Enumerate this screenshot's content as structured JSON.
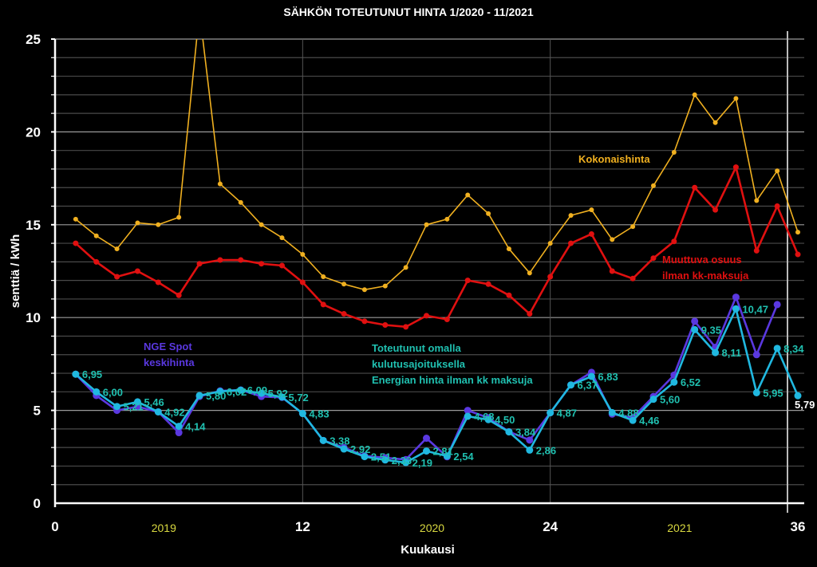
{
  "chart_data": {
    "type": "line",
    "title": "SÄHKÖN TOTEUTUNUT HINTA 1/2020 - 11/2021",
    "xlabel": "Kuukausi",
    "ylabel": "senttiä / kWh",
    "xlim": [
      0,
      36
    ],
    "ylim": [
      0,
      25
    ],
    "x_ticks": [
      "0",
      "12",
      "24",
      "36"
    ],
    "y_ticks": [
      "0",
      "5",
      "10",
      "15",
      "20",
      "25"
    ],
    "year_labels": [
      {
        "x": 5,
        "label": "2019"
      },
      {
        "x": 18,
        "label": "2020"
      },
      {
        "x": 30,
        "label": "2021"
      }
    ],
    "grid": true,
    "series": [
      {
        "name": "Kokonaishinta",
        "color": "#f0b020",
        "x": [
          1,
          2,
          3,
          4,
          5,
          6,
          7,
          8,
          9,
          10,
          11,
          12,
          13,
          14,
          15,
          16,
          17,
          18,
          19,
          20,
          21,
          22,
          23,
          24,
          25,
          26,
          27,
          28,
          29,
          30,
          31,
          32,
          33,
          34,
          35,
          36
        ],
        "values": [
          15.3,
          14.4,
          13.7,
          15.1,
          15.0,
          15.4,
          26.5,
          17.2,
          16.2,
          15.0,
          14.3,
          13.4,
          12.2,
          11.8,
          11.5,
          11.7,
          12.7,
          15.0,
          15.3,
          16.6,
          15.6,
          13.7,
          12.4,
          14.0,
          15.5,
          15.8,
          14.2,
          14.9,
          17.1,
          18.9,
          22.0,
          20.5,
          21.8,
          16.3,
          17.9,
          14.6
        ]
      },
      {
        "name": "Muuttuva osuus ilman kk-maksuja",
        "color": "#e01010",
        "x": [
          1,
          2,
          3,
          4,
          5,
          6,
          7,
          8,
          9,
          10,
          11,
          12,
          13,
          14,
          15,
          16,
          17,
          18,
          19,
          20,
          21,
          22,
          23,
          24,
          25,
          26,
          27,
          28,
          29,
          30,
          31,
          32,
          33,
          34,
          35,
          36
        ],
        "values": [
          14.0,
          13.0,
          12.2,
          12.5,
          11.9,
          11.2,
          12.9,
          13.1,
          13.1,
          12.9,
          12.8,
          11.9,
          10.7,
          10.2,
          9.8,
          9.6,
          9.5,
          10.1,
          9.9,
          12.0,
          11.8,
          11.2,
          10.2,
          12.2,
          14.0,
          14.5,
          12.5,
          12.1,
          13.2,
          14.1,
          17.0,
          15.8,
          18.1,
          13.6,
          16.0,
          13.4
        ]
      },
      {
        "name": "NGE Spot keskihinta",
        "color": "#5a38e0",
        "x": [
          1,
          2,
          3,
          4,
          5,
          6,
          7,
          8,
          9,
          10,
          11,
          12,
          13,
          14,
          15,
          16,
          17,
          18,
          19,
          20,
          21,
          22,
          23,
          24,
          25,
          26,
          27,
          28,
          29,
          30,
          31,
          32,
          33,
          34,
          35
        ],
        "values": [
          6.95,
          5.8,
          5.0,
          5.2,
          4.92,
          3.8,
          5.75,
          6.05,
          6.1,
          5.75,
          5.7,
          4.83,
          3.38,
          3.0,
          2.55,
          2.45,
          2.35,
          3.5,
          2.5,
          5.0,
          4.6,
          3.85,
          3.4,
          4.87,
          6.37,
          7.05,
          4.8,
          4.6,
          5.75,
          6.9,
          9.8,
          8.4,
          11.1,
          8.0,
          10.7
        ]
      },
      {
        "name": "Toteutunut omalla kulutusajoituksella Energian hinta ilman kk maksuja",
        "color": "#20b8e0",
        "label_color": "#20c0b0",
        "last_label_color": "#ffffff",
        "x": [
          1,
          2,
          3,
          4,
          5,
          6,
          7,
          8,
          9,
          10,
          11,
          12,
          13,
          14,
          15,
          16,
          17,
          18,
          19,
          20,
          21,
          22,
          23,
          24,
          25,
          26,
          27,
          28,
          29,
          30,
          31,
          32,
          33,
          34,
          35,
          36
        ],
        "values": [
          6.95,
          6.0,
          5.21,
          5.46,
          4.92,
          4.14,
          5.8,
          6.02,
          6.09,
          5.92,
          5.72,
          4.83,
          3.38,
          2.92,
          2.51,
          2.33,
          2.19,
          2.81,
          2.54,
          4.68,
          4.5,
          3.84,
          2.86,
          4.87,
          6.37,
          6.83,
          4.88,
          4.46,
          5.6,
          6.52,
          9.35,
          8.11,
          10.47,
          5.95,
          8.34,
          5.79
        ],
        "labels": [
          "6,95",
          "6,00",
          "5,21",
          "5,46",
          "4,92",
          "4,14",
          "5,80",
          "6,02",
          "6,09",
          "5,92",
          "5,72",
          "4,83",
          "3,38",
          "2,92",
          "2,51",
          "2,33",
          "2,19",
          "2,81",
          "2,54",
          "4,68",
          "4,50",
          "3,84",
          "2,86",
          "4,87",
          "6,37",
          "6,83",
          "4,88",
          "4,46",
          "5,60",
          "6,52",
          "9,35",
          "8,11",
          "10,47",
          "5,95",
          "8,34",
          "5,79"
        ]
      }
    ],
    "annotations": {
      "kokonais": "Kokonaishinta",
      "muuttuva1": "Muuttuva osuus",
      "muuttuva2": "ilman kk-maksuja",
      "nge1": "NGE Spot",
      "nge2": "keskihinta",
      "tot1": "Toteutunut omalla",
      "tot2": "kulutusajoituksella",
      "tot3": "Energian hinta ilman kk maksuja"
    }
  }
}
